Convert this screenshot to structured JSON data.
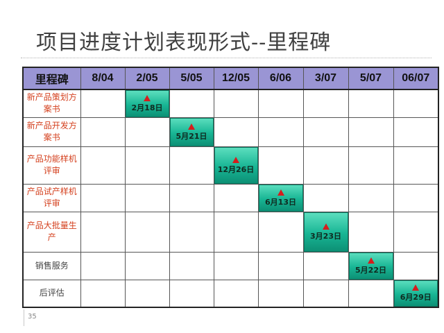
{
  "title": "项目进度计划表现形式--里程碑",
  "page_number": "35",
  "table": {
    "corner_label": "里程碑",
    "columns": [
      "8/04",
      "2/05",
      "5/05",
      "12/05",
      "6/06",
      "3/07",
      "5/07",
      "06/07"
    ],
    "rows": [
      {
        "label": "新产品策划方案书",
        "milestone_col": 1,
        "date": "2月18日",
        "style": "red"
      },
      {
        "label": "新产品开发方案书",
        "milestone_col": 2,
        "date": "5月21日",
        "style": "red"
      },
      {
        "label": "产品功能样机评审",
        "milestone_col": 3,
        "date": "12月26日",
        "style": "red"
      },
      {
        "label": "产品试产样机评审",
        "milestone_col": 4,
        "date": "6月13日",
        "style": "red"
      },
      {
        "label": "产品大批量生产",
        "milestone_col": 5,
        "date": "3月23日",
        "style": "red"
      },
      {
        "label": "销售服务",
        "milestone_col": 6,
        "date": "5月22日",
        "style": "plain"
      },
      {
        "label": "后评估",
        "milestone_col": 7,
        "date": "6月29日",
        "style": "plain"
      }
    ]
  },
  "colors": {
    "header_bg": "#9a95d4",
    "milestone_fill": "#18b594",
    "marker": "#d51d1d",
    "row_label": "#d4401e"
  },
  "icons": {
    "milestone_marker": "red-triangle-icon"
  }
}
